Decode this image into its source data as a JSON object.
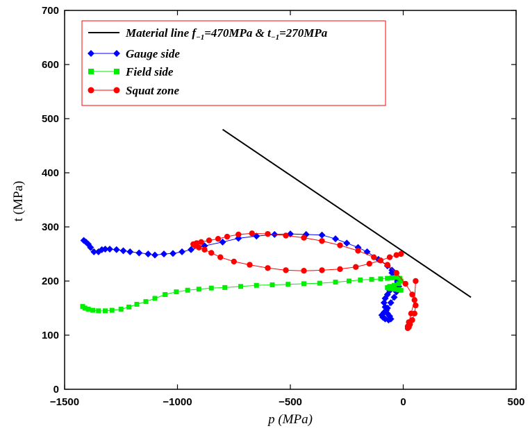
{
  "chart_data": {
    "type": "line",
    "xlabel": "p (MPa)",
    "ylabel": "t (MPa)",
    "xlim": [
      -1500,
      500
    ],
    "ylim": [
      0,
      700
    ],
    "xticks": [
      "−1500",
      "−1000",
      "−500",
      "0",
      "500"
    ],
    "yticks": [
      "0",
      "100",
      "200",
      "300",
      "400",
      "500",
      "600",
      "700"
    ],
    "grid": false,
    "legend_position": "top-left",
    "legend": {
      "material": {
        "prefix": "Material line ",
        "f_sym": "f",
        "f_sub": "−1",
        "f_val": "=470MPa & ",
        "t_sym": "t",
        "t_sub": "−1",
        "t_val": "=270MPa"
      }
    },
    "series": [
      {
        "name": "Material line f−1=470MPa & t−1=270MPa",
        "color": "#000000",
        "marker": "none",
        "x": [
          -800,
          300
        ],
        "y": [
          480,
          170
        ]
      },
      {
        "name": "Gauge side",
        "color": "#0000ff",
        "marker": "diamond",
        "x": [
          -1415,
          -1405,
          -1395,
          -1385,
          -1370,
          -1350,
          -1335,
          -1320,
          -1300,
          -1270,
          -1240,
          -1210,
          -1170,
          -1130,
          -1100,
          -1060,
          -1020,
          -980,
          -940,
          -880,
          -800,
          -730,
          -650,
          -570,
          -500,
          -430,
          -360,
          -300,
          -250,
          -200,
          -160,
          -110,
          -70,
          -50,
          -35,
          -30,
          -25,
          -45,
          -60,
          -70,
          -80,
          -85,
          -80,
          -75,
          -70,
          -60,
          -55,
          -65,
          -80,
          -90,
          -95,
          -85,
          -70,
          -55,
          -40,
          -30,
          -20,
          -25,
          -35,
          -50
        ],
        "y": [
          275,
          272,
          268,
          262,
          254,
          254,
          258,
          259,
          259,
          258,
          256,
          254,
          252,
          250,
          248,
          250,
          251,
          254,
          258,
          265,
          272,
          279,
          283,
          286,
          287,
          286,
          285,
          278,
          270,
          262,
          254,
          240,
          228,
          220,
          212,
          205,
          198,
          190,
          182,
          175,
          168,
          160,
          152,
          146,
          140,
          135,
          130,
          128,
          130,
          133,
          137,
          142,
          150,
          160,
          170,
          180,
          190,
          200,
          210,
          215
        ]
      },
      {
        "name": "Field side",
        "color": "#00ee00",
        "marker": "square",
        "x": [
          -1420,
          -1410,
          -1395,
          -1375,
          -1350,
          -1320,
          -1290,
          -1250,
          -1215,
          -1180,
          -1140,
          -1100,
          -1055,
          -1005,
          -955,
          -905,
          -850,
          -790,
          -720,
          -650,
          -580,
          -510,
          -440,
          -370,
          -300,
          -240,
          -190,
          -140,
          -100,
          -70,
          -50,
          -30,
          -15,
          -10,
          -20,
          -40,
          -60,
          -70,
          -60,
          -40,
          -20,
          -10,
          -20,
          -40,
          -55,
          -50
        ],
        "y": [
          153,
          150,
          148,
          146,
          145,
          145,
          146,
          148,
          152,
          157,
          162,
          168,
          175,
          180,
          183,
          185,
          187,
          188,
          190,
          192,
          193,
          194,
          195,
          196,
          198,
          200,
          202,
          203,
          204,
          205,
          206,
          207,
          205,
          200,
          195,
          192,
          190,
          188,
          186,
          185,
          184,
          183,
          184,
          186,
          188,
          190
        ]
      },
      {
        "name": "Squat zone",
        "color": "#ff0000",
        "marker": "circle",
        "x": [
          -10,
          -30,
          -60,
          -100,
          -150,
          -210,
          -280,
          -360,
          -440,
          -520,
          -600,
          -680,
          -750,
          -810,
          -850,
          -880,
          -905,
          -920,
          -928,
          -930,
          -926,
          -915,
          -895,
          -860,
          -820,
          -780,
          -730,
          -670,
          -600,
          -520,
          -440,
          -360,
          -280,
          -200,
          -130,
          -70,
          -30,
          10,
          40,
          55,
          50,
          40,
          30,
          25,
          20,
          20,
          25,
          35,
          50,
          55
        ],
        "y": [
          250,
          248,
          244,
          238,
          232,
          226,
          222,
          220,
          219,
          220,
          224,
          230,
          236,
          244,
          252,
          258,
          262,
          265,
          267,
          268,
          268,
          270,
          272,
          275,
          278,
          282,
          286,
          288,
          287,
          284,
          280,
          274,
          266,
          256,
          244,
          230,
          215,
          195,
          175,
          155,
          140,
          128,
          120,
          115,
          113,
          116,
          124,
          140,
          165,
          200
        ]
      }
    ]
  }
}
